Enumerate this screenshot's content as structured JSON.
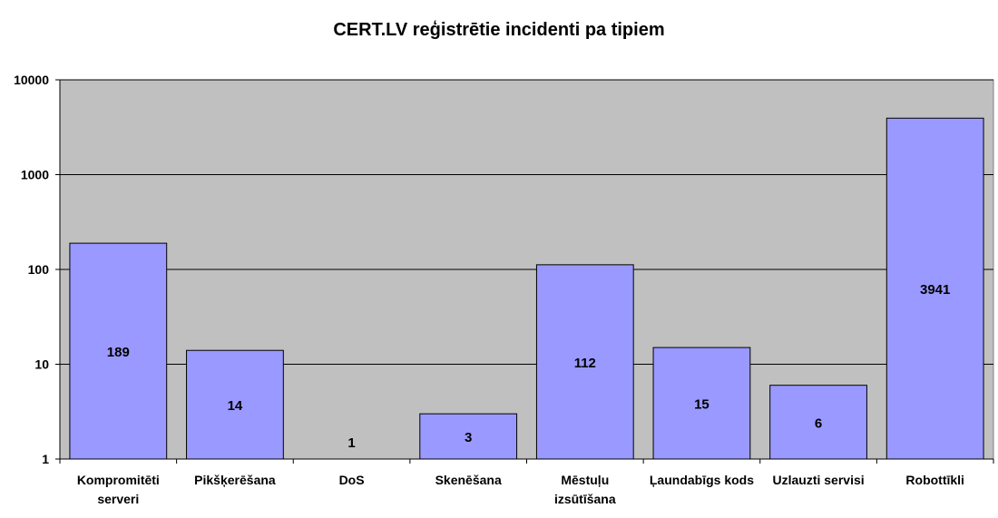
{
  "chart_data": {
    "type": "bar",
    "title": "CERT.LV reģistrētie incidenti pa tipiem",
    "xlabel": "",
    "ylabel": "",
    "yscale": "log",
    "ylim": [
      1,
      10000
    ],
    "grid": true,
    "legend": "none",
    "categories": [
      [
        "Kompromitēti",
        "serveri"
      ],
      [
        "Pikšķerēšana"
      ],
      [
        "DoS"
      ],
      [
        "Skenēšana"
      ],
      [
        "Mēstuļu",
        "izsūtīšana"
      ],
      [
        "Ļaundabīgs kods"
      ],
      [
        "Uzlauzti servisi"
      ],
      [
        "Robottīkli"
      ]
    ],
    "values": [
      189,
      14,
      1,
      3,
      112,
      15,
      6,
      3941
    ],
    "y_ticks": [
      1,
      10,
      100,
      1000,
      10000
    ],
    "colors": {
      "plot_bg": "#c0c0c0",
      "bar_fill": "#9999ff",
      "bar_stroke": "#000000",
      "grid": "#000000"
    }
  }
}
